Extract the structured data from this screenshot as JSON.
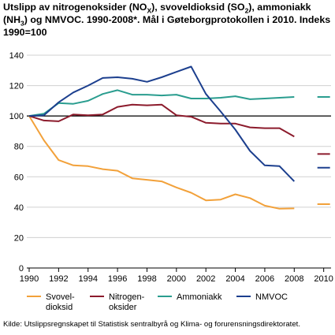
{
  "chart_data": {
    "type": "line",
    "title_parts": [
      {
        "t": "Utslipp av nitrogenoksider (NO"
      },
      {
        "t": "X",
        "sub": true
      },
      {
        "t": "), svoveldioksid (SO"
      },
      {
        "t": "2",
        "sub": true
      },
      {
        "t": "), ammoniakk (NH"
      },
      {
        "t": "3",
        "sub": true
      },
      {
        "t": ") og NMVOC. 1990-2008*. Mål i Gøteborgprotokollen i 2010. Indeks 1990=100"
      }
    ],
    "y_ticks": [
      "0",
      "20",
      "40",
      "60",
      "80",
      "100",
      "120",
      "140"
    ],
    "ylim": [
      0,
      140
    ],
    "x_tick_labels": [
      "1990",
      "1992",
      "1994",
      "1996",
      "1998",
      "2000",
      "2002",
      "2004",
      "2006",
      "2008",
      "2010"
    ],
    "x": [
      1990,
      1991,
      1992,
      1993,
      1994,
      1995,
      1996,
      1997,
      1998,
      1999,
      2000,
      2001,
      2002,
      2003,
      2004,
      2005,
      2006,
      2007,
      2008
    ],
    "grid": true,
    "reference_line": 100,
    "series": [
      {
        "name": "Svovel-\ndioksid",
        "color": "#f2a13a",
        "values": [
          100,
          84,
          71,
          67.5,
          67,
          65,
          64,
          59,
          58,
          57,
          53,
          49.5,
          44.5,
          45,
          48.5,
          46,
          41,
          39,
          39.2
        ],
        "target_2010": 42
      },
      {
        "name": "Nitrogen-\noksider",
        "color": "#8c1b2c",
        "values": [
          100,
          97,
          96.5,
          101,
          100.5,
          101,
          106,
          107.5,
          107,
          107.5,
          100.5,
          99.5,
          95.5,
          95,
          95,
          92.5,
          92,
          92,
          86.5
        ],
        "target_2010": 75
      },
      {
        "name": "Ammoniakk",
        "color": "#2a9d8f",
        "values": [
          100,
          101.5,
          108.5,
          108,
          110,
          114.5,
          117,
          114,
          114,
          113.5,
          114,
          111.5,
          111.5,
          112,
          113,
          111,
          111.5,
          112,
          112.5
        ],
        "target_2010": 112.5
      },
      {
        "name": "NMVOC",
        "color": "#1c3f8e",
        "values": [
          100,
          100.5,
          109,
          115.5,
          120,
          125,
          125.5,
          124.5,
          122.5,
          125.5,
          129,
          132.5,
          114.5,
          103,
          91,
          77,
          67.5,
          67,
          57
        ],
        "target_2010": 66
      }
    ]
  },
  "source": "Kilde: Utslippsregnskapet til Statistisk sentralbyrå og Klima- og forurensningsdirektoratet."
}
